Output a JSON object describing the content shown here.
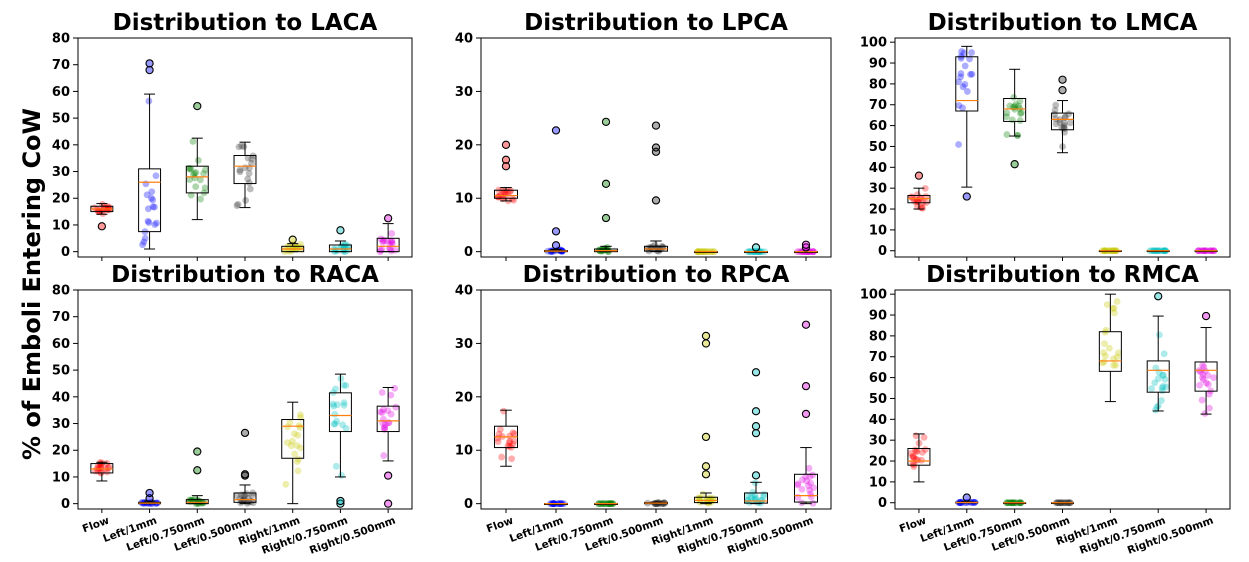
{
  "figure": {
    "ylabel": "% of Emboli Entering CoW"
  },
  "categories": [
    "Flow",
    "Left/1mm",
    "Left/0.750mm",
    "Left/0.500mm",
    "Right/1mm",
    "Right/0.750mm",
    "Right/0.500mm"
  ],
  "colors": [
    "#ff0000",
    "#0000ff",
    "#008000",
    "#333333",
    "#c8c800",
    "#00c0c0",
    "#e000e0"
  ],
  "chart_data": [
    {
      "type": "box",
      "title": "Distribution to LACA",
      "ylim": [
        -2,
        80
      ],
      "yticks": [
        0,
        10,
        20,
        30,
        40,
        50,
        60,
        70,
        80
      ],
      "boxes": [
        {
          "category": "Flow",
          "q1": 15,
          "median": 16,
          "q3": 17,
          "whisker_low": 14,
          "whisker_high": 18,
          "fliers": [
            9.5
          ]
        },
        {
          "category": "Left/1mm",
          "q1": 7.5,
          "median": 26,
          "q3": 31,
          "whisker_low": 1,
          "whisker_high": 59,
          "fliers": [
            68,
            70.5
          ]
        },
        {
          "category": "Left/0.750mm",
          "q1": 22,
          "median": 28,
          "q3": 32,
          "whisker_low": 12,
          "whisker_high": 42.5,
          "fliers": [
            54.5
          ]
        },
        {
          "category": "Left/0.500mm",
          "q1": 25.5,
          "median": 32,
          "q3": 36,
          "whisker_low": 16.5,
          "whisker_high": 41,
          "fliers": []
        },
        {
          "category": "Right/1mm",
          "q1": 0,
          "median": 1,
          "q3": 2,
          "whisker_low": 0,
          "whisker_high": 3,
          "fliers": [
            4.5
          ]
        },
        {
          "category": "Right/0.750mm",
          "q1": 0,
          "median": 1,
          "q3": 2.5,
          "whisker_low": 0,
          "whisker_high": 4,
          "fliers": [
            8
          ]
        },
        {
          "category": "Right/0.500mm",
          "q1": 0,
          "median": 2,
          "q3": 5,
          "whisker_low": 0,
          "whisker_high": 10.5,
          "fliers": [
            12.5
          ]
        }
      ]
    },
    {
      "type": "box",
      "title": "Distribution to LPCA",
      "ylim": [
        -1,
        40
      ],
      "yticks": [
        0,
        10,
        20,
        30,
        40
      ],
      "boxes": [
        {
          "category": "Flow",
          "q1": 10,
          "median": 10.5,
          "q3": 11.5,
          "whisker_low": 9.5,
          "whisker_high": 12,
          "fliers": [
            16,
            17.2,
            20
          ]
        },
        {
          "category": "Left/1mm",
          "q1": 0,
          "median": 0.1,
          "q3": 0.2,
          "whisker_low": 0,
          "whisker_high": 0.4,
          "fliers": [
            1.2,
            3.8,
            22.7
          ]
        },
        {
          "category": "Left/0.750mm",
          "q1": 0,
          "median": 0.2,
          "q3": 0.5,
          "whisker_low": 0,
          "whisker_high": 1,
          "fliers": [
            6.3,
            12.7,
            24.3
          ]
        },
        {
          "category": "Left/0.500mm",
          "q1": 0.1,
          "median": 0.5,
          "q3": 1,
          "whisker_low": 0,
          "whisker_high": 2,
          "fliers": [
            9.6,
            18.7,
            19.5,
            23.6
          ]
        },
        {
          "category": "Right/1mm",
          "q1": 0,
          "median": 0,
          "q3": 0,
          "whisker_low": 0,
          "whisker_high": 0,
          "fliers": []
        },
        {
          "category": "Right/0.750mm",
          "q1": 0,
          "median": 0,
          "q3": 0,
          "whisker_low": 0,
          "whisker_high": 0,
          "fliers": [
            0.8
          ]
        },
        {
          "category": "Right/0.500mm",
          "q1": 0,
          "median": 0,
          "q3": 0,
          "whisker_low": 0,
          "whisker_high": 0,
          "fliers": [
            0.8,
            1.3
          ]
        }
      ]
    },
    {
      "type": "box",
      "title": "Distribution to LMCA",
      "ylim": [
        -3,
        102
      ],
      "yticks": [
        0,
        10,
        20,
        30,
        40,
        50,
        60,
        70,
        80,
        90,
        100
      ],
      "boxes": [
        {
          "category": "Flow",
          "q1": 23,
          "median": 25,
          "q3": 26.5,
          "whisker_low": 20,
          "whisker_high": 30,
          "fliers": [
            36
          ]
        },
        {
          "category": "Left/1mm",
          "q1": 67,
          "median": 72,
          "q3": 93,
          "whisker_low": 30.5,
          "whisker_high": 98,
          "fliers": [
            26
          ]
        },
        {
          "category": "Left/0.750mm",
          "q1": 62,
          "median": 68,
          "q3": 73,
          "whisker_low": 55,
          "whisker_high": 87,
          "fliers": [
            41.5
          ]
        },
        {
          "category": "Left/0.500mm",
          "q1": 58,
          "median": 63,
          "q3": 66,
          "whisker_low": 47,
          "whisker_high": 72,
          "fliers": [
            77,
            82
          ]
        },
        {
          "category": "Right/1mm",
          "q1": 0,
          "median": 0,
          "q3": 0,
          "whisker_low": 0,
          "whisker_high": 0,
          "fliers": []
        },
        {
          "category": "Right/0.750mm",
          "q1": 0,
          "median": 0,
          "q3": 0,
          "whisker_low": 0,
          "whisker_high": 0,
          "fliers": []
        },
        {
          "category": "Right/0.500mm",
          "q1": 0,
          "median": 0,
          "q3": 0,
          "whisker_low": 0,
          "whisker_high": 0,
          "fliers": []
        }
      ]
    },
    {
      "type": "box",
      "title": "Distribution to RACA",
      "ylim": [
        -2,
        80
      ],
      "yticks": [
        0,
        10,
        20,
        30,
        40,
        50,
        60,
        70,
        80
      ],
      "boxes": [
        {
          "category": "Flow",
          "q1": 11.5,
          "median": 13,
          "q3": 15,
          "whisker_low": 8.5,
          "whisker_high": 15.5,
          "fliers": []
        },
        {
          "category": "Left/1mm",
          "q1": 0,
          "median": 0.2,
          "q3": 0.5,
          "whisker_low": 0,
          "whisker_high": 1,
          "fliers": [
            2,
            4
          ]
        },
        {
          "category": "Left/0.750mm",
          "q1": 0,
          "median": 0.5,
          "q3": 1.5,
          "whisker_low": 0,
          "whisker_high": 3,
          "fliers": [
            12.5,
            19.5
          ]
        },
        {
          "category": "Left/0.500mm",
          "q1": 0.5,
          "median": 1.5,
          "q3": 4,
          "whisker_low": 0,
          "whisker_high": 7,
          "fliers": [
            10.5,
            11,
            26.5
          ]
        },
        {
          "category": "Right/1mm",
          "q1": 17,
          "median": 29,
          "q3": 31.5,
          "whisker_low": 0,
          "whisker_high": 38,
          "fliers": []
        },
        {
          "category": "Right/0.750mm",
          "q1": 27,
          "median": 33,
          "q3": 41.5,
          "whisker_low": 10,
          "whisker_high": 48.5,
          "fliers": [
            0,
            1
          ]
        },
        {
          "category": "Right/0.500mm",
          "q1": 27,
          "median": 31,
          "q3": 36.5,
          "whisker_low": 16,
          "whisker_high": 43.5,
          "fliers": [
            0,
            10.5
          ]
        }
      ]
    },
    {
      "type": "box",
      "title": "Distribution to RPCA",
      "ylim": [
        -1,
        40
      ],
      "yticks": [
        0,
        10,
        20,
        30,
        40
      ],
      "boxes": [
        {
          "category": "Flow",
          "q1": 10.5,
          "median": 12.5,
          "q3": 14.5,
          "whisker_low": 7,
          "whisker_high": 17.5,
          "fliers": []
        },
        {
          "category": "Left/1mm",
          "q1": 0,
          "median": 0,
          "q3": 0,
          "whisker_low": 0,
          "whisker_high": 0,
          "fliers": []
        },
        {
          "category": "Left/0.750mm",
          "q1": 0,
          "median": 0,
          "q3": 0,
          "whisker_low": 0,
          "whisker_high": 0,
          "fliers": []
        },
        {
          "category": "Left/0.500mm",
          "q1": 0,
          "median": 0.1,
          "q3": 0.2,
          "whisker_low": 0,
          "whisker_high": 0.3,
          "fliers": []
        },
        {
          "category": "Right/1mm",
          "q1": 0.2,
          "median": 0.6,
          "q3": 1.2,
          "whisker_low": 0,
          "whisker_high": 2,
          "fliers": [
            5.5,
            7,
            12.5,
            30,
            31.4
          ]
        },
        {
          "category": "Right/0.750mm",
          "q1": 0.1,
          "median": 0.5,
          "q3": 2,
          "whisker_low": 0,
          "whisker_high": 4,
          "fliers": [
            5.3,
            13.2,
            14.5,
            17.3,
            24.6
          ]
        },
        {
          "category": "Right/0.500mm",
          "q1": 0.3,
          "median": 1.5,
          "q3": 5.5,
          "whisker_low": 0,
          "whisker_high": 10.5,
          "fliers": [
            16.8,
            22,
            33.5
          ]
        }
      ]
    },
    {
      "type": "box",
      "title": "Distribution to RMCA",
      "ylim": [
        -3,
        102
      ],
      "yticks": [
        0,
        10,
        20,
        30,
        40,
        50,
        60,
        70,
        80,
        90,
        100
      ],
      "boxes": [
        {
          "category": "Flow",
          "q1": 18,
          "median": 20,
          "q3": 26,
          "whisker_low": 10,
          "whisker_high": 33,
          "fliers": []
        },
        {
          "category": "Left/1mm",
          "q1": 0,
          "median": 0.1,
          "q3": 0.3,
          "whisker_low": 0,
          "whisker_high": 0.5,
          "fliers": [
            2.5
          ]
        },
        {
          "category": "Left/0.750mm",
          "q1": 0,
          "median": 0,
          "q3": 0,
          "whisker_low": 0,
          "whisker_high": 0,
          "fliers": []
        },
        {
          "category": "Left/0.500mm",
          "q1": 0,
          "median": 0,
          "q3": 0,
          "whisker_low": 0,
          "whisker_high": 0,
          "fliers": []
        },
        {
          "category": "Right/1mm",
          "q1": 63,
          "median": 68,
          "q3": 82,
          "whisker_low": 48.5,
          "whisker_high": 100,
          "fliers": []
        },
        {
          "category": "Right/0.750mm",
          "q1": 53,
          "median": 63.5,
          "q3": 68,
          "whisker_low": 44,
          "whisker_high": 89.5,
          "fliers": [
            99
          ]
        },
        {
          "category": "Right/0.500mm",
          "q1": 53.5,
          "median": 63.5,
          "q3": 67.5,
          "whisker_low": 42.5,
          "whisker_high": 84,
          "fliers": [
            89.5
          ]
        }
      ]
    }
  ]
}
